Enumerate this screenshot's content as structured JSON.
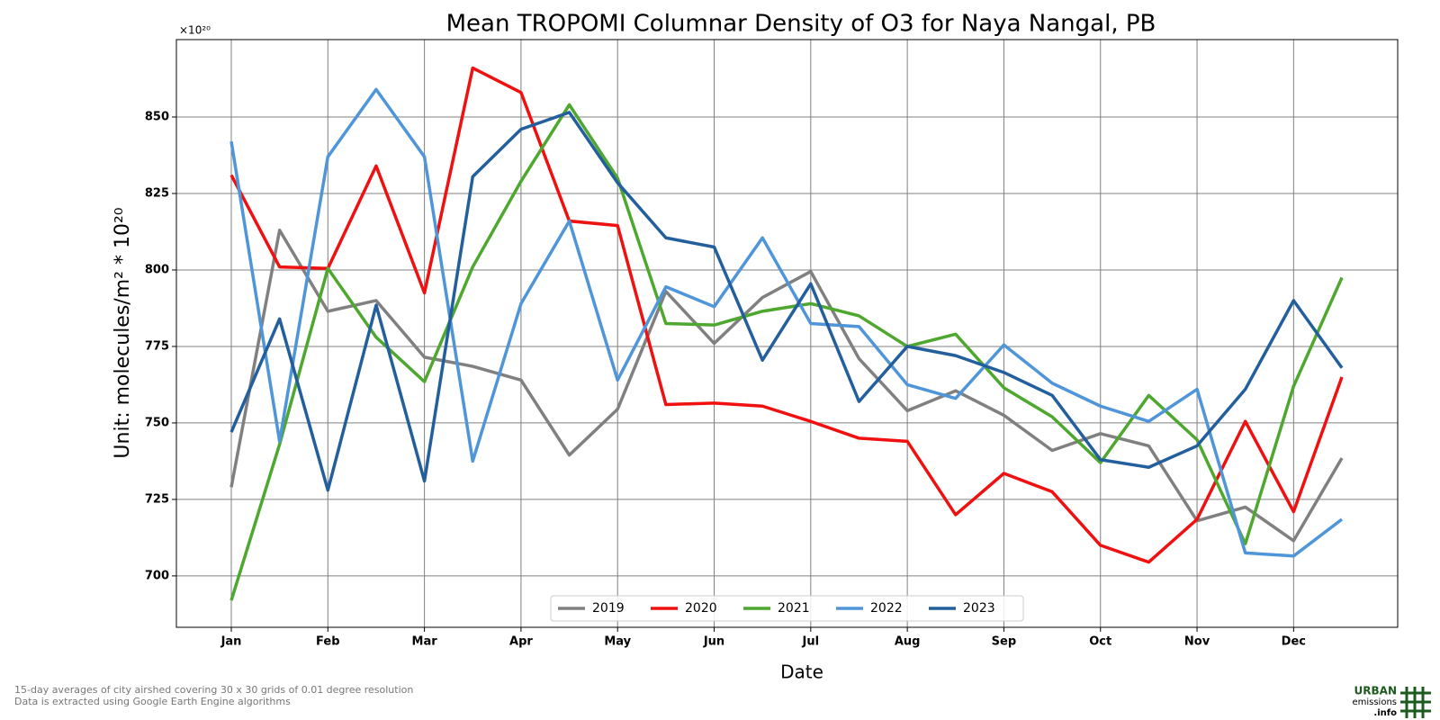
{
  "chart_data": {
    "type": "line",
    "title": "Mean TROPOMI Columnar Density of O3 for Naya Nangal, PB",
    "y_offset_label": "×10²⁰",
    "y_label": "Unit: molecules/m² * 10²⁰",
    "x_label": "Date",
    "categories": [
      "Jan",
      null,
      "Feb",
      null,
      "Mar",
      null,
      "Apr",
      null,
      "May",
      null,
      "Jun",
      null,
      "Jul",
      null,
      "Aug",
      null,
      "Sep",
      null,
      "Oct",
      null,
      "Nov",
      null,
      "Dec",
      null
    ],
    "ylim": [
      683.2,
      875.3
    ],
    "yticks": [
      700,
      725,
      750,
      775,
      800,
      825,
      850
    ],
    "grid": true,
    "legend": "lower center",
    "series": [
      {
        "name": "2019",
        "color": "#808080",
        "values": [
          729,
          813,
          786.5,
          790,
          771.5,
          768.5,
          764,
          739.5,
          754.5,
          793,
          776,
          791,
          799.5,
          771,
          754,
          760.5,
          752.5,
          741,
          746.5,
          742.5,
          718,
          722.5,
          711.5,
          738.5
        ]
      },
      {
        "name": "2020",
        "color": "#f01010",
        "values": [
          831,
          801,
          800.5,
          834,
          792.5,
          866,
          858,
          816,
          814.5,
          756,
          756.5,
          755.5,
          750.5,
          745,
          744,
          720,
          733.5,
          727.5,
          710,
          704.5,
          718.5,
          750.5,
          721,
          765
        ]
      },
      {
        "name": "2021",
        "color": "#4ea72e",
        "values": [
          692,
          743,
          800.5,
          778,
          763.5,
          801,
          829,
          854,
          830,
          782.5,
          782,
          786.5,
          789,
          785,
          775,
          779,
          761.5,
          752,
          737,
          759,
          744.5,
          710.5,
          762,
          797.5
        ]
      },
      {
        "name": "2022",
        "color": "#4f95d9",
        "values": [
          842,
          744,
          837,
          859,
          837,
          737.5,
          789,
          816,
          764,
          794.5,
          788,
          810.5,
          782.5,
          781.5,
          762.5,
          758,
          775.5,
          763,
          755.5,
          750.5,
          761,
          707.5,
          706.5,
          718.5
        ]
      },
      {
        "name": "2023",
        "color": "#235f9c",
        "values": [
          747,
          784,
          728,
          788.5,
          731,
          830.5,
          846,
          851.5,
          828.5,
          810.5,
          807.5,
          770.5,
          795.5,
          757,
          775,
          772,
          766.5,
          759,
          738,
          735.5,
          742.5,
          761,
          790,
          768
        ]
      }
    ]
  },
  "footnote": [
    "15-day averages of city airshed covering 30 x 30 grids of 0.01 degree resolution",
    "Data is extracted using Google Earth Engine algorithms"
  ],
  "logo": [
    "URBAN",
    "emissions",
    ".info"
  ]
}
